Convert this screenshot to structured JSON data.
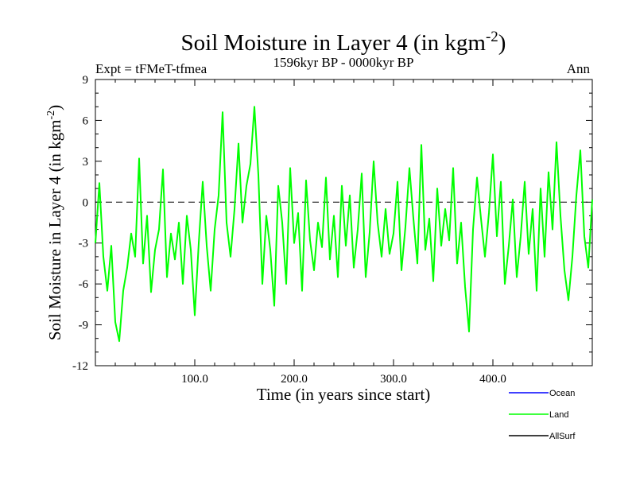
{
  "chart_data": {
    "type": "line",
    "title": "Soil Moisture in Layer 4 (in kgm",
    "title_sup": "-2",
    "title_close": ")",
    "subtitle_left": "Expt = tFMeT-tfmea",
    "subtitle_center": "1596kyr BP - 0000kyr BP",
    "subtitle_right": "Ann",
    "xlabel": "Time (in years since start)",
    "ylabel": "Soil Moisture in Layer 4 (in kgm",
    "ylabel_sup": "-2",
    "ylabel_close": ")",
    "xlim": [
      0,
      500
    ],
    "ylim": [
      -12,
      9
    ],
    "xticks": [
      100,
      200,
      300,
      400
    ],
    "xtick_labels": [
      "100.0",
      "200.0",
      "300.0",
      "400.0"
    ],
    "yticks": [
      -12,
      -9,
      -6,
      -3,
      0,
      3,
      6,
      9
    ],
    "ytick_labels": [
      "-12",
      "-9",
      "-6",
      "-3",
      "0",
      "3",
      "6",
      "9"
    ],
    "reference_line": 0,
    "legend": [
      {
        "name": "Ocean",
        "color": "#0000ff"
      },
      {
        "name": "Land",
        "color": "#00ff00"
      },
      {
        "name": "AllSurf",
        "color": "#000000"
      }
    ],
    "series": [
      {
        "name": "Land",
        "color": "#00ff00",
        "x": [
          0,
          4,
          8,
          12,
          16,
          20,
          24,
          28,
          32,
          36,
          40,
          44,
          48,
          52,
          56,
          60,
          64,
          68,
          72,
          76,
          80,
          84,
          88,
          92,
          96,
          100,
          104,
          108,
          112,
          116,
          120,
          124,
          128,
          132,
          136,
          140,
          144,
          148,
          152,
          156,
          160,
          164,
          168,
          172,
          176,
          180,
          184,
          188,
          192,
          196,
          200,
          204,
          208,
          212,
          216,
          220,
          224,
          228,
          232,
          236,
          240,
          244,
          248,
          252,
          256,
          260,
          264,
          268,
          272,
          276,
          280,
          284,
          288,
          292,
          296,
          300,
          304,
          308,
          312,
          316,
          320,
          324,
          328,
          332,
          336,
          340,
          344,
          348,
          352,
          356,
          360,
          364,
          368,
          372,
          376,
          380,
          384,
          388,
          392,
          396,
          400,
          404,
          408,
          412,
          416,
          420,
          424,
          428,
          432,
          436,
          440,
          444,
          448,
          452,
          456,
          460,
          464,
          468,
          472,
          476,
          480,
          484,
          488,
          492,
          496,
          500
        ],
        "y": [
          -3.0,
          1.4,
          -4.0,
          -6.5,
          -3.2,
          -8.8,
          -10.2,
          -6.5,
          -4.8,
          -2.3,
          -4.0,
          3.2,
          -4.5,
          -1.0,
          -6.6,
          -3.5,
          -2.0,
          2.4,
          -5.5,
          -2.3,
          -4.2,
          -1.5,
          -6.0,
          -1.0,
          -3.5,
          -8.3,
          -3.0,
          1.5,
          -3.2,
          -6.5,
          -2.0,
          0.5,
          6.6,
          -1.5,
          -4.0,
          -0.5,
          4.3,
          -1.5,
          1.2,
          2.8,
          7.0,
          2.0,
          -6.0,
          -1.0,
          -3.5,
          -7.6,
          1.2,
          -1.5,
          -6.0,
          2.5,
          -3.0,
          -0.8,
          -6.5,
          1.6,
          -2.8,
          -5.0,
          -1.5,
          -3.3,
          1.8,
          -4.2,
          -1.0,
          -5.5,
          1.2,
          -3.2,
          0.5,
          -4.8,
          -2.0,
          2.1,
          -5.5,
          -2.2,
          3.0,
          -1.5,
          -4.0,
          -0.5,
          -3.8,
          -2.3,
          1.5,
          -5.0,
          -1.8,
          2.5,
          -1.2,
          -4.5,
          4.2,
          -3.5,
          -1.2,
          -5.8,
          1.0,
          -3.2,
          -0.5,
          -2.8,
          2.5,
          -4.5,
          -1.5,
          -6.2,
          -9.5,
          -2.0,
          1.8,
          -1.2,
          -4.0,
          -0.8,
          3.5,
          -2.5,
          1.5,
          -6.0,
          -3.2,
          0.2,
          -5.5,
          -2.5,
          1.5,
          -3.8,
          -0.5,
          -6.5,
          1.0,
          -4.0,
          2.2,
          -2.0,
          4.4,
          -1.0,
          -5.0,
          -7.2,
          -4.0,
          0.5,
          3.8,
          -2.5,
          -4.8,
          0.2
        ]
      }
    ]
  }
}
